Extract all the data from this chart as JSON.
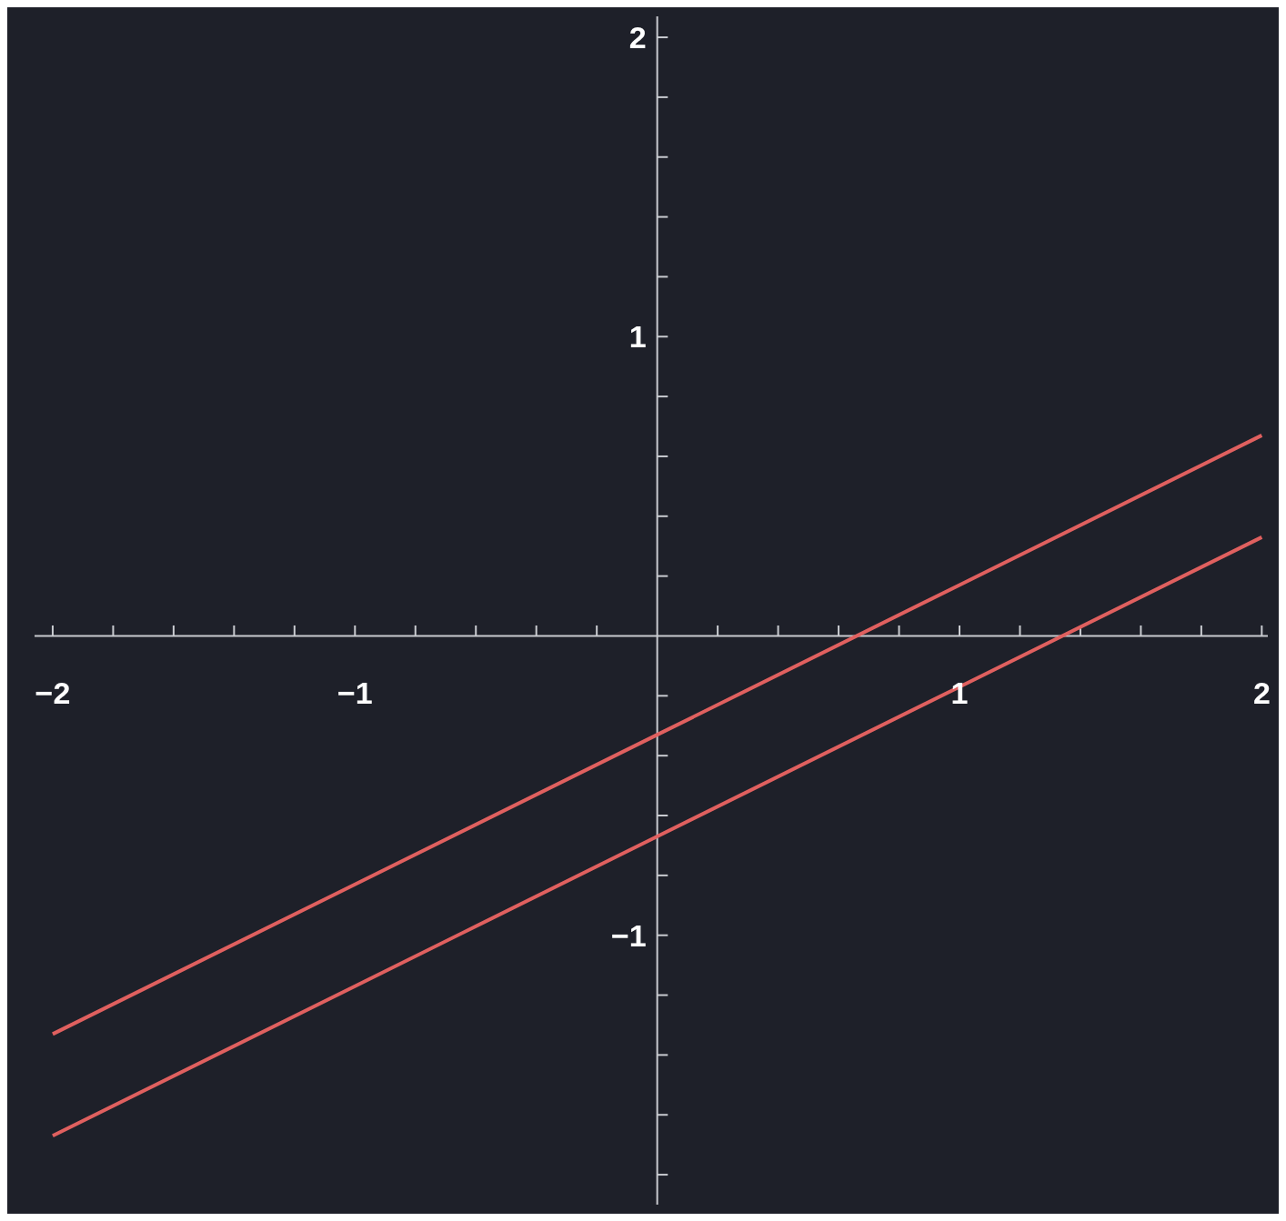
{
  "chart_data": {
    "type": "line",
    "x": [
      -2,
      -1,
      0,
      1,
      2
    ],
    "series": [
      {
        "color": "#e0605f",
        "values": [
          -1.33,
          -0.83,
          -0.33,
          0.17,
          0.67
        ]
      },
      {
        "color": "#e0605f",
        "values": [
          -1.67,
          -1.17,
          -0.67,
          -0.17,
          0.33
        ]
      }
    ],
    "xlim": [
      -2.06,
      2.02
    ],
    "ylim": [
      -1.9,
      2.07
    ],
    "xticks": [
      {
        "value": -2,
        "label": "−2"
      },
      {
        "value": -1.8,
        "label": null
      },
      {
        "value": -1.6,
        "label": null
      },
      {
        "value": -1.4,
        "label": null
      },
      {
        "value": -1.2,
        "label": null
      },
      {
        "value": -1,
        "label": "−1"
      },
      {
        "value": -0.8,
        "label": null
      },
      {
        "value": -0.6,
        "label": null
      },
      {
        "value": -0.4,
        "label": null
      },
      {
        "value": -0.2,
        "label": null
      },
      {
        "value": 0.2,
        "label": null
      },
      {
        "value": 0.4,
        "label": null
      },
      {
        "value": 0.6,
        "label": null
      },
      {
        "value": 0.8,
        "label": null
      },
      1,
      {
        "value": 1.2,
        "label": null
      },
      {
        "value": 1.4,
        "label": null
      },
      {
        "value": 1.6,
        "label": null
      },
      {
        "value": 1.8,
        "label": null
      },
      2
    ],
    "yticks": [
      {
        "value": -1.8,
        "label": null
      },
      {
        "value": -1.6,
        "label": null
      },
      {
        "value": -1.4,
        "label": null
      },
      {
        "value": -1.2,
        "label": null
      },
      {
        "value": -1,
        "label": "−1"
      },
      {
        "value": -0.8,
        "label": null
      },
      {
        "value": -0.6,
        "label": null
      },
      {
        "value": -0.4,
        "label": null
      },
      {
        "value": -0.2,
        "label": null
      },
      {
        "value": 0.2,
        "label": null
      },
      {
        "value": 0.4,
        "label": null
      },
      {
        "value": 0.6,
        "label": null
      },
      {
        "value": 0.8,
        "label": null
      },
      1,
      {
        "value": 1.2,
        "label": null
      },
      {
        "value": 1.4,
        "label": null
      },
      {
        "value": 1.6,
        "label": null
      },
      {
        "value": 1.8,
        "label": null
      },
      2
    ],
    "marker": "none",
    "line_style": "solid"
  }
}
